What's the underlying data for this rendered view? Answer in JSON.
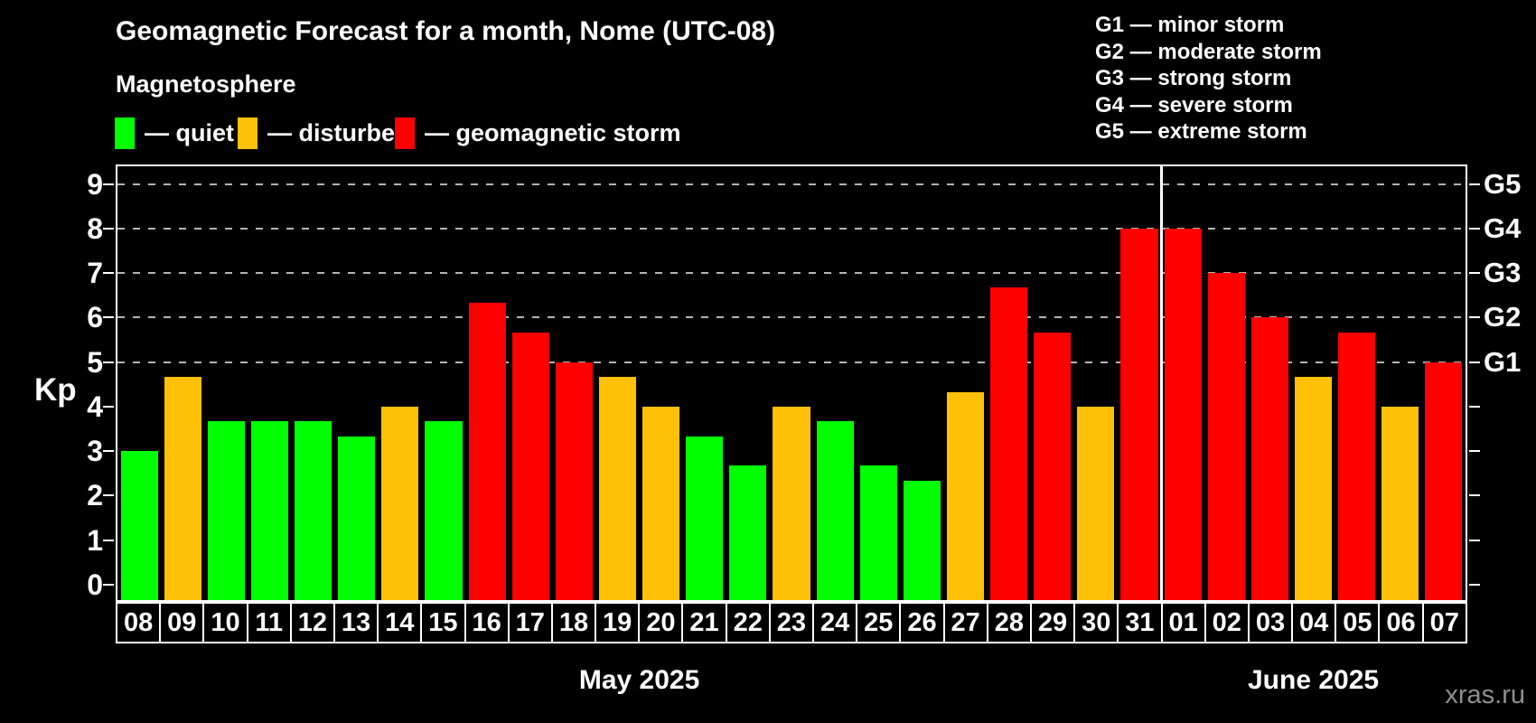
{
  "title": "Geomagnetic Forecast for a month, Nome (UTC-08)",
  "subtitle": "Magnetosphere",
  "legend": {
    "items": [
      {
        "label": "— quiet",
        "level": "quiet"
      },
      {
        "label": "— disturbed",
        "level": "disturbed"
      },
      {
        "label": "— geomagnetic storm",
        "level": "storm"
      }
    ]
  },
  "g_legend": [
    "G1 — minor storm",
    "G2 — moderate storm",
    "G3 — strong storm",
    "G4 — severe storm",
    "G5 — extreme storm"
  ],
  "watermark": "xras.ru",
  "colors": {
    "quiet": "#00ff00",
    "disturbed": "#ffc107",
    "storm": "#ff0000",
    "grid": "#b4b4b4",
    "axis": "#ffffff",
    "background": "#000000",
    "watermark": "#8f8f8f"
  },
  "chart_data": {
    "type": "bar",
    "ylabel": "Kp",
    "ylim": [
      -0.35,
      9.4
    ],
    "yticks": [
      0,
      1,
      2,
      3,
      4,
      5,
      6,
      7,
      8,
      9
    ],
    "grid_kp_levels": [
      5,
      6,
      7,
      8,
      9
    ],
    "right_axis": [
      {
        "kp": 5,
        "label": "G1"
      },
      {
        "kp": 6,
        "label": "G2"
      },
      {
        "kp": 7,
        "label": "G3"
      },
      {
        "kp": 8,
        "label": "G4"
      },
      {
        "kp": 9,
        "label": "G5"
      }
    ],
    "separator_after_index": 23,
    "months": [
      {
        "label": "May 2025"
      },
      {
        "label": "June 2025"
      }
    ],
    "bars": [
      {
        "day": "08",
        "kp": 3.0,
        "level": "quiet"
      },
      {
        "day": "09",
        "kp": 4.67,
        "level": "disturbed"
      },
      {
        "day": "10",
        "kp": 3.67,
        "level": "quiet"
      },
      {
        "day": "11",
        "kp": 3.67,
        "level": "quiet"
      },
      {
        "day": "12",
        "kp": 3.67,
        "level": "quiet"
      },
      {
        "day": "13",
        "kp": 3.33,
        "level": "quiet"
      },
      {
        "day": "14",
        "kp": 4.0,
        "level": "disturbed"
      },
      {
        "day": "15",
        "kp": 3.67,
        "level": "quiet"
      },
      {
        "day": "16",
        "kp": 6.33,
        "level": "storm"
      },
      {
        "day": "17",
        "kp": 5.67,
        "level": "storm"
      },
      {
        "day": "18",
        "kp": 5.0,
        "level": "storm"
      },
      {
        "day": "19",
        "kp": 4.67,
        "level": "disturbed"
      },
      {
        "day": "20",
        "kp": 4.0,
        "level": "disturbed"
      },
      {
        "day": "21",
        "kp": 3.33,
        "level": "quiet"
      },
      {
        "day": "22",
        "kp": 2.67,
        "level": "quiet"
      },
      {
        "day": "23",
        "kp": 4.0,
        "level": "disturbed"
      },
      {
        "day": "24",
        "kp": 3.67,
        "level": "quiet"
      },
      {
        "day": "25",
        "kp": 2.67,
        "level": "quiet"
      },
      {
        "day": "26",
        "kp": 2.33,
        "level": "quiet"
      },
      {
        "day": "27",
        "kp": 4.33,
        "level": "disturbed"
      },
      {
        "day": "28",
        "kp": 6.67,
        "level": "storm"
      },
      {
        "day": "29",
        "kp": 5.67,
        "level": "storm"
      },
      {
        "day": "30",
        "kp": 4.0,
        "level": "disturbed"
      },
      {
        "day": "31",
        "kp": 8.0,
        "level": "storm"
      },
      {
        "day": "01",
        "kp": 8.0,
        "level": "storm"
      },
      {
        "day": "02",
        "kp": 7.0,
        "level": "storm"
      },
      {
        "day": "03",
        "kp": 6.0,
        "level": "storm"
      },
      {
        "day": "04",
        "kp": 4.67,
        "level": "disturbed"
      },
      {
        "day": "05",
        "kp": 5.67,
        "level": "storm"
      },
      {
        "day": "06",
        "kp": 4.0,
        "level": "disturbed"
      },
      {
        "day": "07",
        "kp": 5.0,
        "level": "storm"
      }
    ]
  }
}
